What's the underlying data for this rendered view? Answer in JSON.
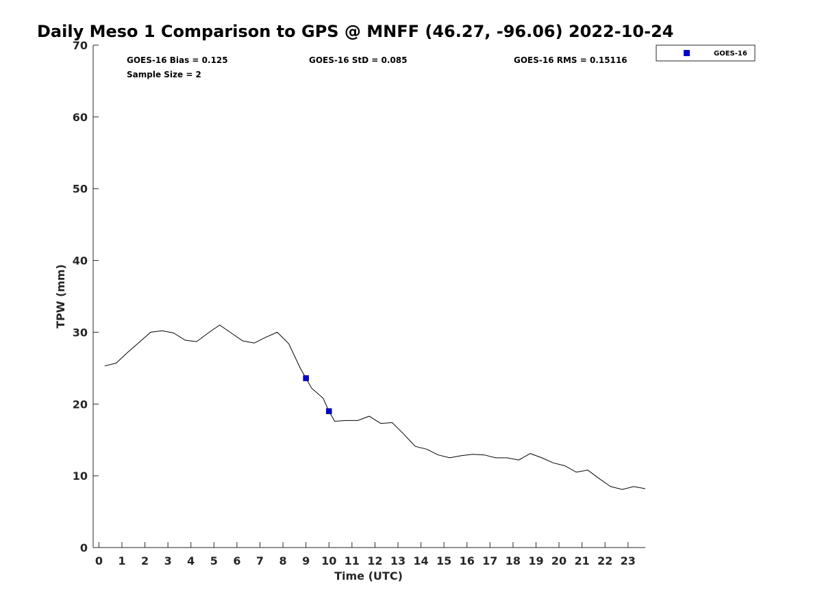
{
  "chart_data": {
    "type": "line",
    "title": "Daily Meso 1 Comparison to GPS @ MNFF (46.27, -96.06) 2022-10-24",
    "xlabel": "Time (UTC)",
    "ylabel": "TPW (mm)",
    "xlim": [
      -0.25,
      23.75
    ],
    "ylim": [
      0,
      70
    ],
    "xticks": [
      "0",
      "1",
      "2",
      "3",
      "4",
      "5",
      "6",
      "7",
      "8",
      "9",
      "10",
      "11",
      "12",
      "13",
      "14",
      "15",
      "16",
      "17",
      "18",
      "19",
      "20",
      "21",
      "22",
      "23"
    ],
    "yticks": [
      "0",
      "10",
      "20",
      "30",
      "40",
      "50",
      "60",
      "70"
    ],
    "grid": false,
    "legend_position": "top-right, outside plot",
    "stats": {
      "bias": "GOES-16 Bias = 0.125",
      "std": "GOES-16 StD = 0.085",
      "rms": "GOES-16 RMS = 0.15116",
      "sample_size": "Sample Size = 2"
    },
    "series": [
      {
        "style": "line",
        "color": "#000000",
        "x": [
          0.25,
          0.75,
          1.25,
          1.75,
          2.25,
          2.75,
          3.25,
          3.75,
          4.25,
          4.75,
          5.25,
          5.75,
          6.25,
          6.75,
          7.25,
          7.75,
          8.25,
          8.75,
          9.0,
          9.25,
          9.75,
          10.0,
          10.25,
          10.75,
          11.25,
          11.75,
          12.25,
          12.75,
          13.25,
          13.75,
          14.25,
          14.75,
          15.25,
          15.75,
          16.25,
          16.75,
          17.25,
          17.75,
          18.25,
          18.75,
          19.25,
          19.75,
          20.25,
          20.75,
          21.25,
          21.75,
          22.25,
          22.75,
          23.25,
          23.75
        ],
        "y": [
          25.3,
          25.7,
          27.2,
          28.6,
          30.0,
          30.2,
          29.9,
          28.9,
          28.7,
          29.9,
          31.0,
          29.9,
          28.8,
          28.5,
          29.3,
          30.0,
          28.4,
          25.0,
          23.6,
          22.2,
          20.8,
          19.0,
          17.6,
          17.7,
          17.7,
          18.3,
          17.3,
          17.4,
          15.8,
          14.1,
          13.7,
          12.9,
          12.5,
          12.8,
          13.0,
          12.9,
          12.5,
          12.5,
          12.2,
          13.1,
          12.5,
          11.8,
          11.4,
          10.5,
          10.8,
          9.6,
          8.5,
          8.1,
          8.5,
          8.2
        ]
      },
      {
        "name": "GOES-16",
        "style": "markers",
        "marker": "square",
        "color": "#0000CC",
        "x": [
          9.0,
          10.0
        ],
        "y": [
          23.6,
          19.0
        ]
      }
    ]
  }
}
